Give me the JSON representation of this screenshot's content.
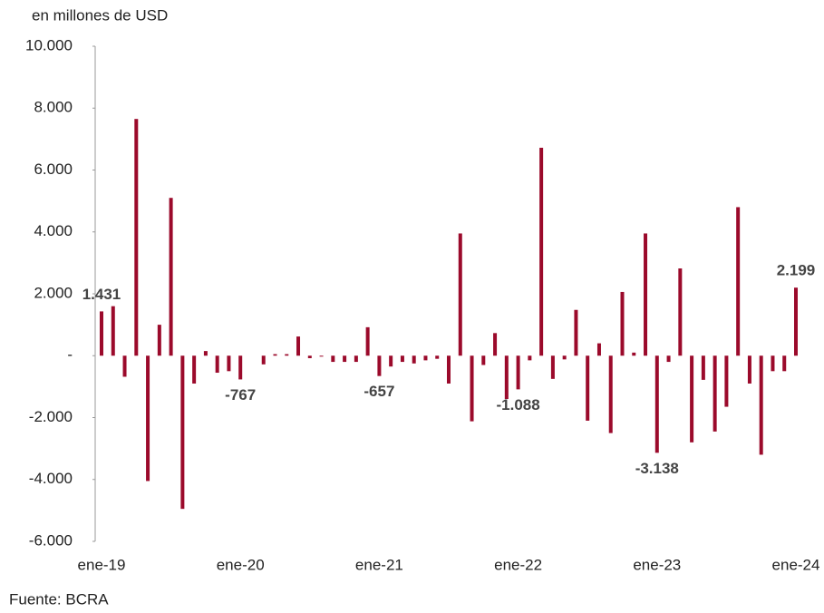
{
  "chart_data": {
    "type": "bar",
    "title": "en millones de USD",
    "source": "Fuente: BCRA",
    "color": "#9b0a2b",
    "categories": [
      "ene-19",
      null,
      null,
      null,
      null,
      null,
      null,
      null,
      null,
      null,
      null,
      null,
      "ene-20",
      null,
      null,
      null,
      null,
      null,
      null,
      null,
      null,
      null,
      null,
      null,
      "ene-21",
      null,
      null,
      null,
      null,
      null,
      null,
      null,
      null,
      null,
      null,
      null,
      "ene-22",
      null,
      null,
      null,
      null,
      null,
      null,
      null,
      null,
      null,
      null,
      null,
      "ene-23",
      null,
      null,
      null,
      null,
      null,
      null,
      null,
      null,
      null,
      null,
      null,
      "ene-24"
    ],
    "values": [
      1431,
      1600,
      -680,
      7650,
      -4050,
      1000,
      5100,
      -4950,
      -900,
      150,
      -550,
      -500,
      -767,
      0,
      -280,
      50,
      50,
      620,
      -80,
      -30,
      -200,
      -200,
      -200,
      920,
      -657,
      -350,
      -200,
      -250,
      -150,
      -100,
      -900,
      3950,
      -2120,
      -300,
      730,
      -1400,
      -1088,
      -150,
      6720,
      -750,
      -120,
      1480,
      -2100,
      400,
      -2500,
      2060,
      100,
      3950,
      -3138,
      -200,
      2820,
      -2800,
      -780,
      -2450,
      -1650,
      4800,
      -900,
      -3200,
      -500,
      -500,
      2199
    ],
    "value_labels": [
      "1.431",
      null,
      null,
      null,
      null,
      null,
      null,
      null,
      null,
      null,
      null,
      null,
      "-767",
      null,
      null,
      null,
      null,
      null,
      null,
      null,
      null,
      null,
      null,
      null,
      "-657",
      null,
      null,
      null,
      null,
      null,
      null,
      null,
      null,
      null,
      null,
      null,
      "-1.088",
      null,
      null,
      null,
      null,
      null,
      null,
      null,
      null,
      null,
      null,
      null,
      "-3.138",
      null,
      null,
      null,
      null,
      null,
      null,
      null,
      null,
      null,
      null,
      null,
      "2.199"
    ],
    "ylim": [
      -6000,
      10000
    ],
    "yticks": [
      {
        "value": -6000,
        "label": "-6.000"
      },
      {
        "value": -4000,
        "label": "-4.000"
      },
      {
        "value": -2000,
        "label": "-2.000"
      },
      {
        "value": 0,
        "label": "-"
      },
      {
        "value": 2000,
        "label": "2.000"
      },
      {
        "value": 4000,
        "label": "4.000"
      },
      {
        "value": 6000,
        "label": "6.000"
      },
      {
        "value": 8000,
        "label": "8.000"
      },
      {
        "value": 10000,
        "label": "10.000"
      }
    ],
    "grid": false
  }
}
